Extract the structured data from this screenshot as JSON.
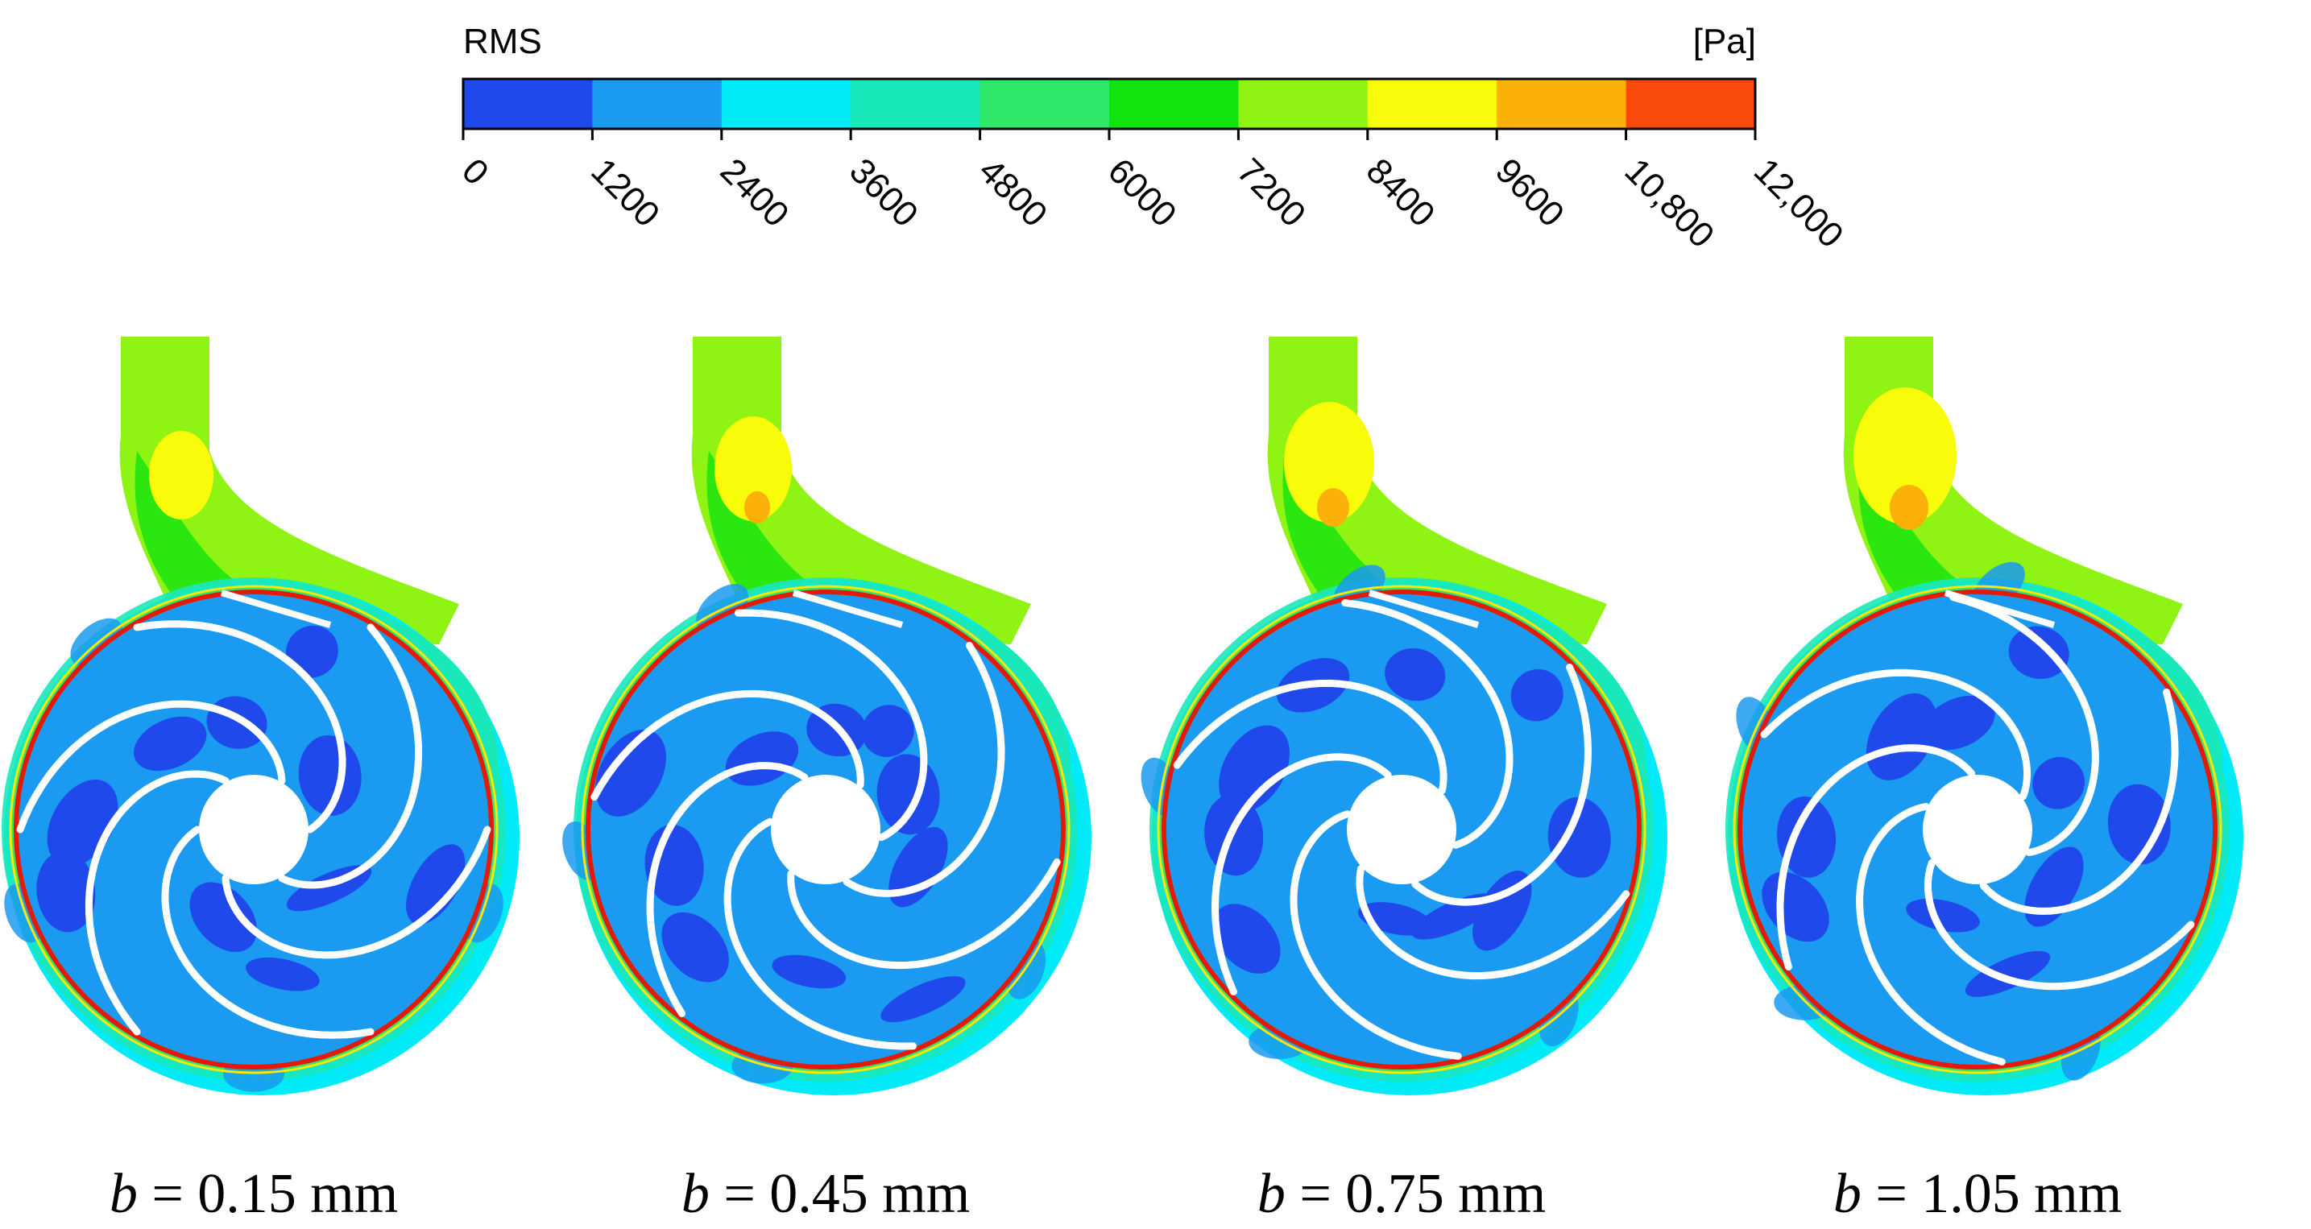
{
  "legend": {
    "title": "RMS",
    "unit": "[Pa]",
    "ticks": [
      "0",
      "1200",
      "2400",
      "3600",
      "4800",
      "6000",
      "7200",
      "8400",
      "9600",
      "10,800",
      "12,000"
    ],
    "colors": [
      "#1f49ea",
      "#1a9af0",
      "#00eaf7",
      "#19e8ba",
      "#2fe768",
      "#11e30f",
      "#8ff313",
      "#f8fb0a",
      "#fbb10a",
      "#fa4a0b"
    ]
  },
  "panels": [
    {
      "var": "b",
      "rest": " = 0.15 mm"
    },
    {
      "var": "b",
      "rest": " = 0.45 mm"
    },
    {
      "var": "b",
      "rest": " = 0.75 mm"
    },
    {
      "var": "b",
      "rest": " = 1.05 mm"
    }
  ],
  "palette": {
    "volute_far": "#00eaf7",
    "volute_mid": "#19e8ba",
    "volute_near": "#2fe768",
    "impeller_base": "#1a9af0",
    "impeller_low": "#1f49ea",
    "ring": "#e31a0a",
    "pipe_base": "#8ff313",
    "pipe_hot": "#f8fb0a",
    "pipe_peak": "#fbb10a",
    "pipe_mid": "#11e30f"
  }
}
